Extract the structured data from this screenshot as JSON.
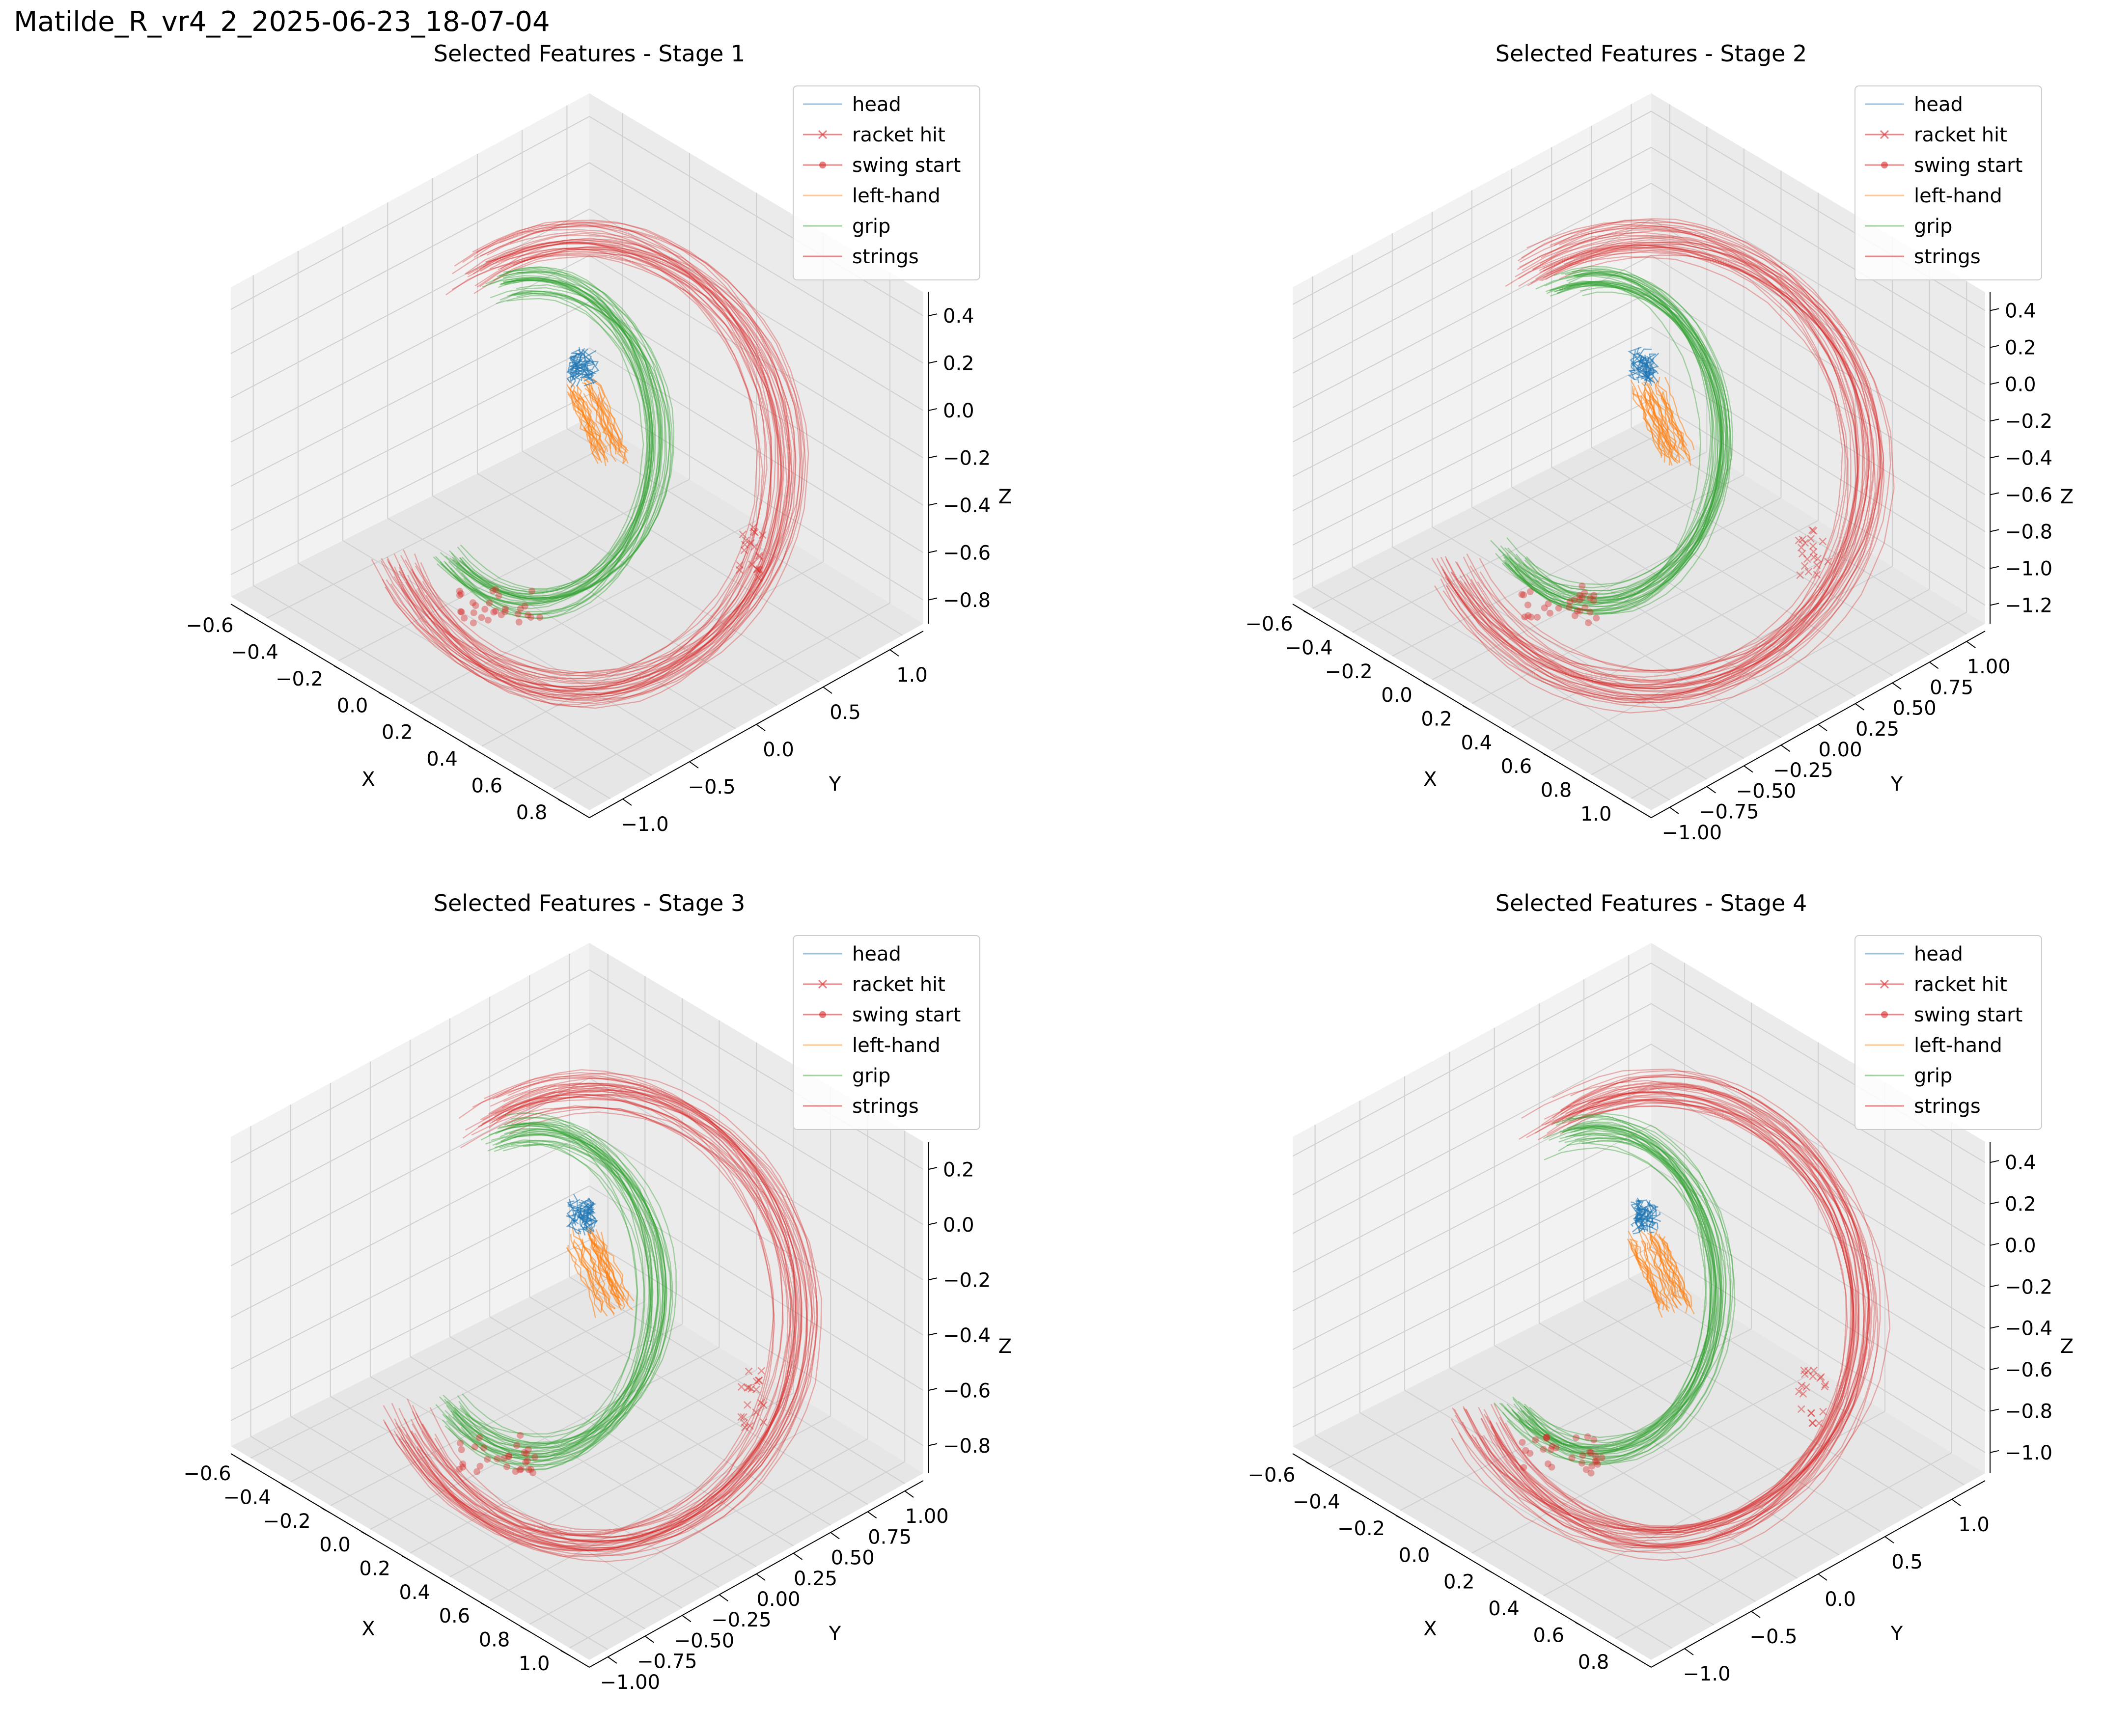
{
  "page_title": "Matilde_R_vr4_2_2025-06-23_18-07-04",
  "legend_labels": [
    "head",
    "racket hit",
    "swing start",
    "left-hand",
    "grip",
    "strings"
  ],
  "colors": {
    "head": "#1f77b4",
    "left-hand": "#ff7f0e",
    "grip": "#2ca02c",
    "strings": "#d62728",
    "racket hit": "#d62728",
    "swing start": "#d62728",
    "pane_left": "#f2f2f2",
    "pane_right": "#ebebeb",
    "pane_floor": "#e6e6e6",
    "grid": "#d0d0d0"
  },
  "chart_data": [
    {
      "type": "line3d",
      "title": "Selected Features - Stage 1",
      "xlabel": "X",
      "ylabel": "Y",
      "zlabel": "Z",
      "xticks": [
        "−0.6",
        "−0.4",
        "−0.2",
        "0.0",
        "0.2",
        "0.4",
        "0.6",
        "0.8"
      ],
      "yticks": [
        "−1.0",
        "−0.5",
        "0.0",
        "0.5",
        "1.0"
      ],
      "zticks": [
        "−0.8",
        "−0.6",
        "−0.4",
        "−0.2",
        "0.0",
        "0.2",
        "0.4"
      ],
      "xlim": [
        -0.6,
        0.8
      ],
      "ylim": [
        -1.0,
        1.0
      ],
      "zlim": [
        -0.9,
        0.45
      ],
      "legend": "top-right",
      "grid": true,
      "variant": 0
    },
    {
      "type": "line3d",
      "title": "Selected Features - Stage 2",
      "xlabel": "X",
      "ylabel": "Y",
      "zlabel": "Z",
      "xticks": [
        "−0.6",
        "−0.4",
        "−0.2",
        "0.0",
        "0.2",
        "0.4",
        "0.6",
        "0.8",
        "1.0"
      ],
      "yticks": [
        "−1.00",
        "−0.75",
        "−0.50",
        "−0.25",
        "0.00",
        "0.25",
        "0.50",
        "0.75",
        "1.00"
      ],
      "zticks": [
        "−1.2",
        "−1.0",
        "−0.8",
        "−0.6",
        "−0.4",
        "−0.2",
        "0.0",
        "0.2",
        "0.4"
      ],
      "xlim": [
        -0.6,
        1.0
      ],
      "ylim": [
        -1.0,
        1.0
      ],
      "zlim": [
        -1.2,
        0.45
      ],
      "legend": "top-right",
      "grid": true,
      "variant": 1
    },
    {
      "type": "line3d",
      "title": "Selected Features - Stage 3",
      "xlabel": "X",
      "ylabel": "Y",
      "zlabel": "Z",
      "xticks": [
        "−0.6",
        "−0.4",
        "−0.2",
        "0.0",
        "0.2",
        "0.4",
        "0.6",
        "0.8",
        "1.0"
      ],
      "yticks": [
        "−1.00",
        "−0.75",
        "−0.50",
        "−0.25",
        "0.00",
        "0.25",
        "0.50",
        "0.75",
        "1.00"
      ],
      "zticks": [
        "−0.8",
        "−0.6",
        "−0.4",
        "−0.2",
        "0.0",
        "0.2"
      ],
      "xlim": [
        -0.6,
        1.0
      ],
      "ylim": [
        -1.0,
        1.0
      ],
      "zlim": [
        -0.9,
        0.35
      ],
      "legend": "top-right",
      "grid": true,
      "variant": 2
    },
    {
      "type": "line3d",
      "title": "Selected Features - Stage 4",
      "xlabel": "X",
      "ylabel": "Y",
      "zlabel": "Z",
      "xticks": [
        "−0.6",
        "−0.4",
        "−0.2",
        "0.0",
        "0.2",
        "0.4",
        "0.6",
        "0.8"
      ],
      "yticks": [
        "−1.0",
        "−0.5",
        "0.0",
        "0.5",
        "1.0"
      ],
      "zticks": [
        "−1.0",
        "−0.8",
        "−0.6",
        "−0.4",
        "−0.2",
        "0.0",
        "0.2",
        "0.4"
      ],
      "xlim": [
        -0.6,
        0.8
      ],
      "ylim": [
        -1.0,
        1.0
      ],
      "zlim": [
        -1.0,
        0.45
      ],
      "legend": "top-right",
      "grid": true,
      "variant": 3
    }
  ]
}
